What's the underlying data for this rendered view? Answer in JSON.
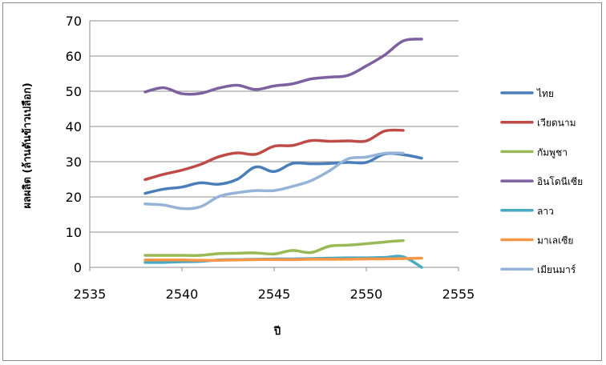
{
  "chart_data": {
    "type": "line",
    "title": "",
    "xlabel": "ปี",
    "ylabel": "ผลผลิต (ล้านตันข้าวเปลือก)",
    "xlim": [
      2535,
      2555
    ],
    "ylim": [
      0,
      70
    ],
    "x_ticks": [
      "2535",
      "2540",
      "2545",
      "2550",
      "2555"
    ],
    "y_ticks": [
      "0",
      "10",
      "20",
      "30",
      "40",
      "50",
      "60",
      "70"
    ],
    "grid": "horizontal",
    "legend_position": "right",
    "x": [
      2538,
      2539,
      2540,
      2541,
      2542,
      2543,
      2544,
      2545,
      2546,
      2547,
      2548,
      2549,
      2550,
      2551,
      2552,
      2553
    ],
    "series": [
      {
        "name": "ไทย",
        "color": "#4a7ebb",
        "values": [
          21.0,
          22.2,
          22.8,
          24.0,
          23.6,
          25.0,
          28.5,
          27.2,
          29.5,
          29.4,
          29.5,
          29.8,
          29.8,
          32.2,
          32.0,
          31.0
        ]
      },
      {
        "name": "เวียดนาม",
        "color": "#be4b48",
        "values": [
          24.9,
          26.4,
          27.6,
          29.2,
          31.4,
          32.5,
          32.1,
          34.4,
          34.6,
          36.0,
          35.8,
          35.9,
          35.9,
          38.7,
          38.9,
          null
        ]
      },
      {
        "name": "กัมพูชา",
        "color": "#98b954",
        "values": [
          3.4,
          3.4,
          3.4,
          3.4,
          3.9,
          4.0,
          4.1,
          3.8,
          4.8,
          4.2,
          6.0,
          6.3,
          6.7,
          7.2,
          7.6,
          null
        ]
      },
      {
        "name": "อินโดนีเซีย",
        "color": "#7d60a0",
        "values": [
          49.8,
          51.0,
          49.3,
          49.4,
          50.9,
          51.7,
          50.5,
          51.5,
          52.1,
          53.5,
          54.0,
          54.5,
          57.2,
          60.3,
          64.3,
          64.8
        ]
      },
      {
        "name": "ลาว",
        "color": "#46aac4",
        "values": [
          1.4,
          1.4,
          1.6,
          1.7,
          2.1,
          2.2,
          2.3,
          2.4,
          2.4,
          2.5,
          2.6,
          2.7,
          2.7,
          2.8,
          3.0,
          0.0
        ]
      },
      {
        "name": "มาเลเซีย",
        "color": "#f79646",
        "values": [
          2.1,
          2.1,
          2.1,
          2.0,
          2.0,
          2.1,
          2.2,
          2.2,
          2.2,
          2.3,
          2.3,
          2.3,
          2.4,
          2.4,
          2.5,
          2.6
        ]
      },
      {
        "name": "เมียนมาร์",
        "color": "#95b3d7",
        "values": [
          18.0,
          17.7,
          16.7,
          17.2,
          20.1,
          21.2,
          21.8,
          21.8,
          23.0,
          24.6,
          27.4,
          30.8,
          31.3,
          32.4,
          32.4,
          null
        ]
      }
    ]
  }
}
